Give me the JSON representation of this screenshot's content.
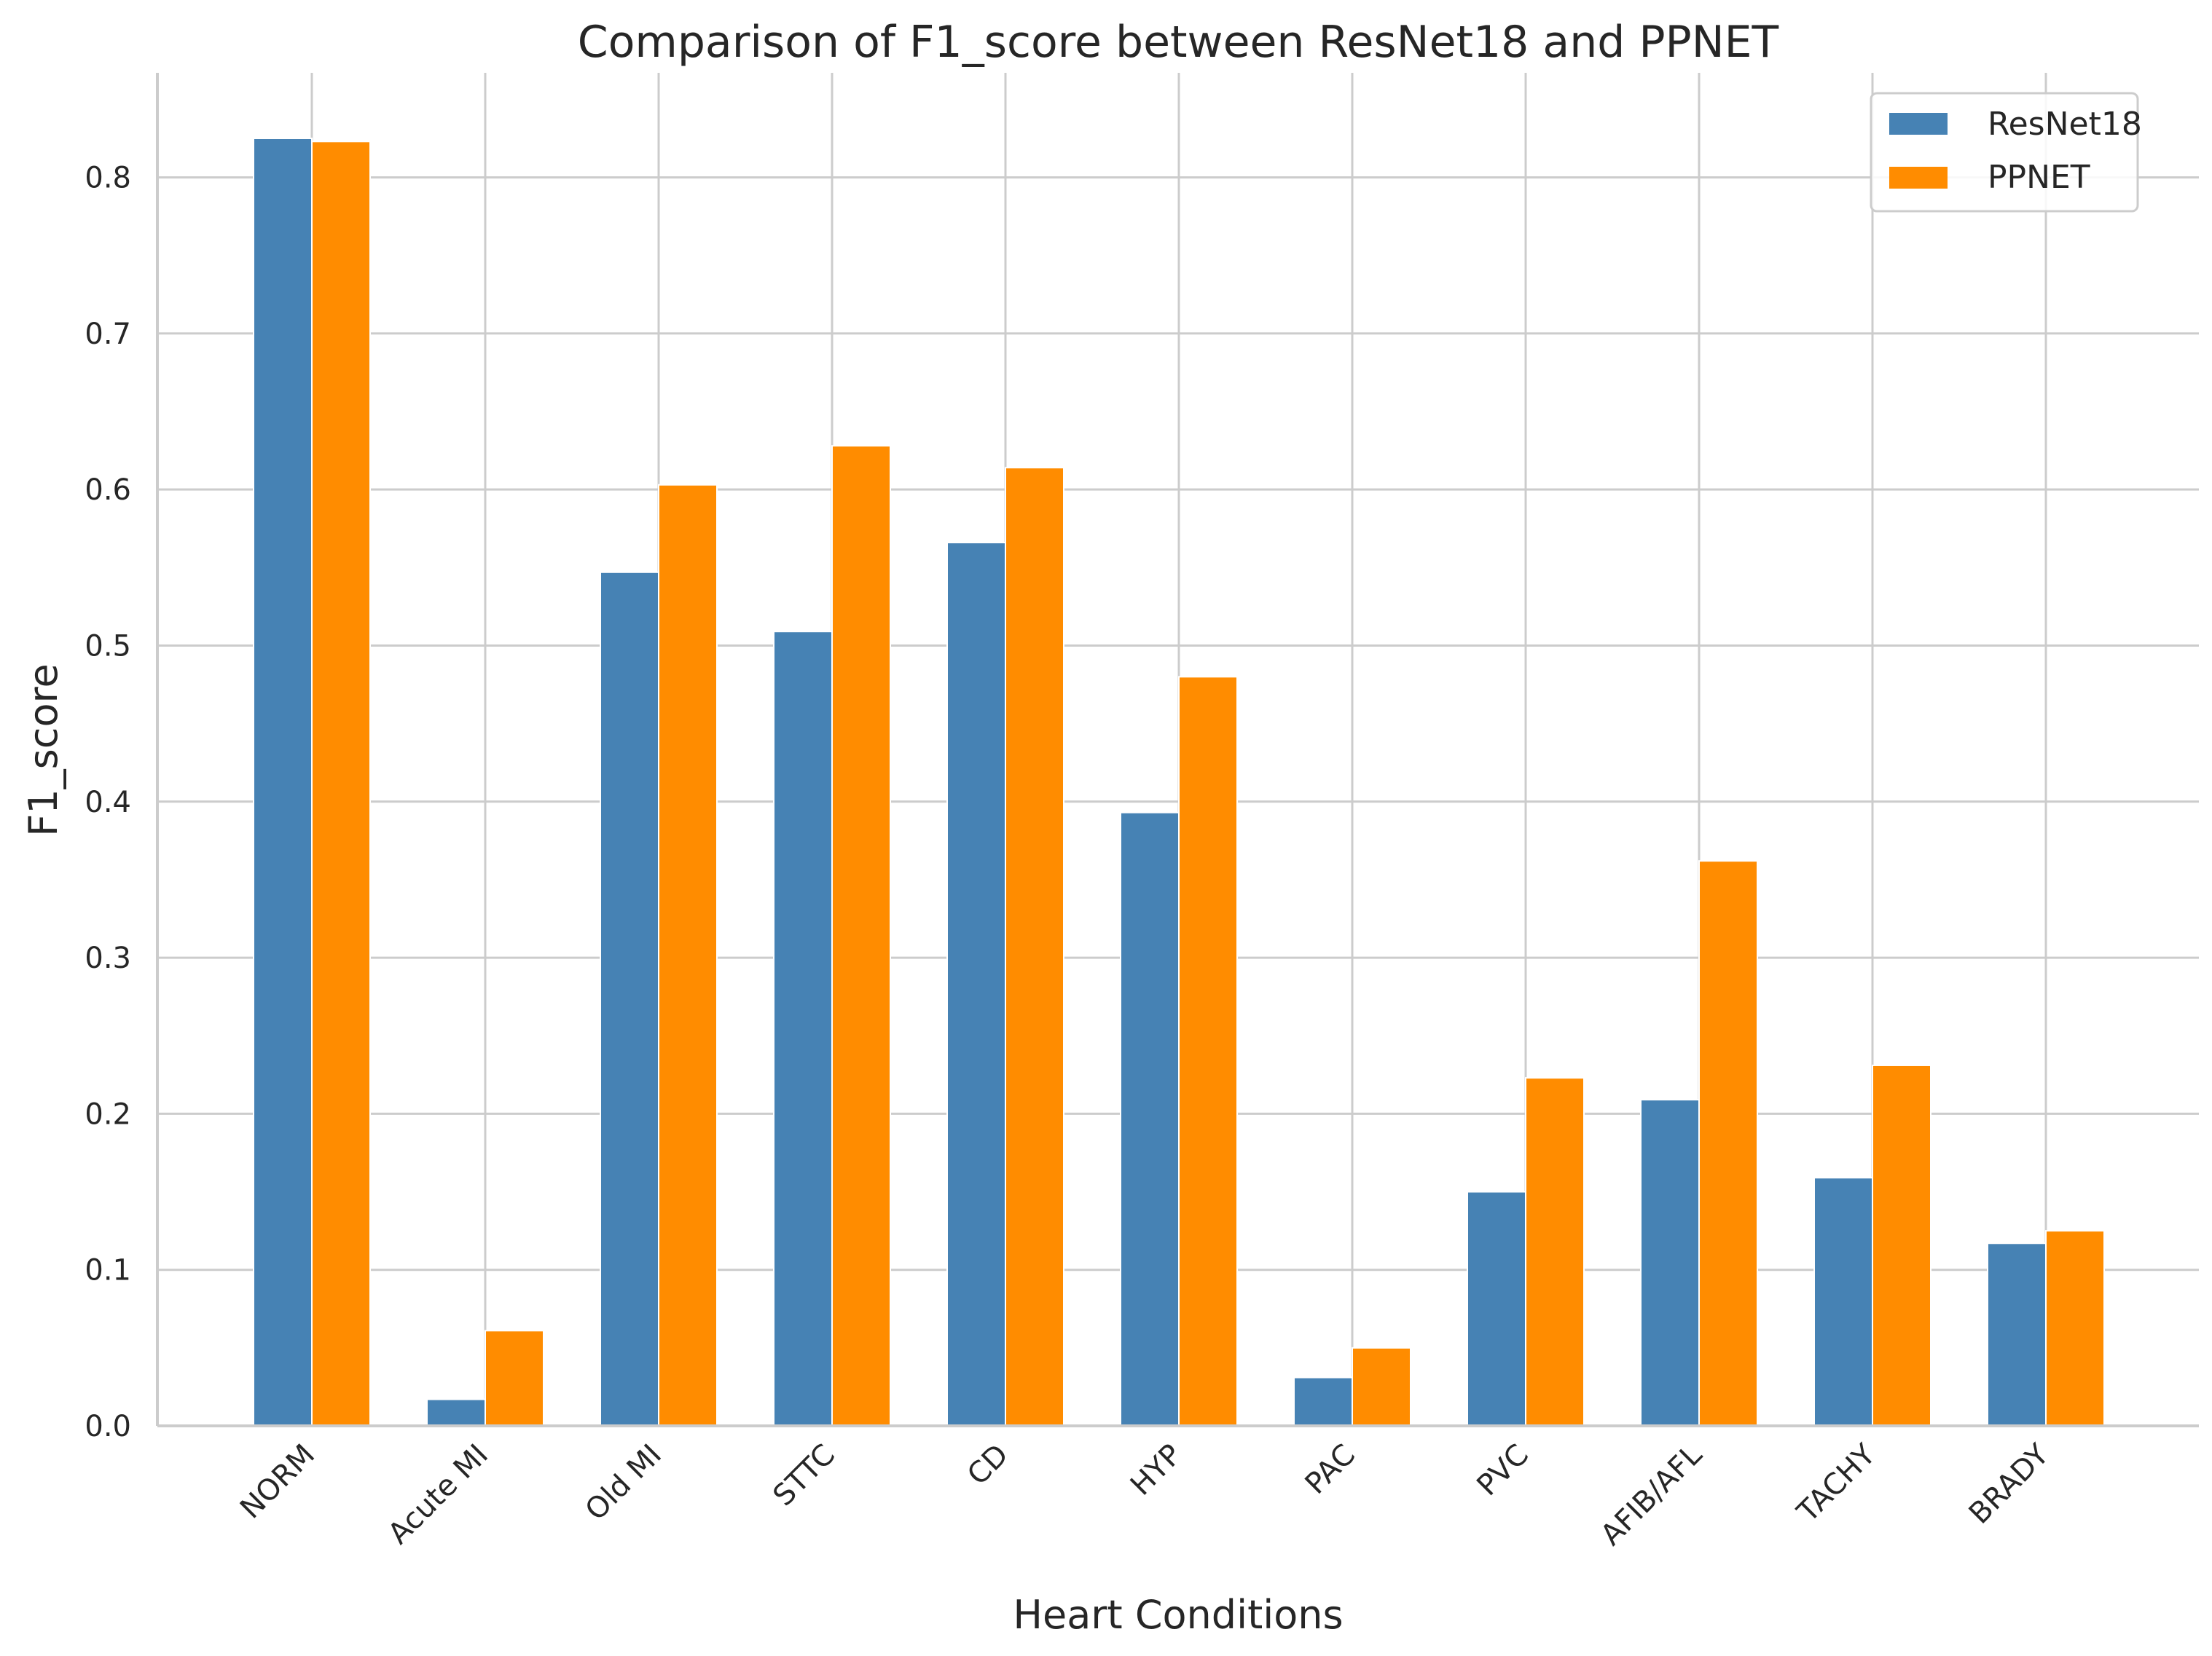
{
  "chart_data": {
    "type": "bar",
    "title": "Comparison of F1_score between ResNet18 and PPNET",
    "xlabel": "Heart Conditions",
    "ylabel": "F1_score",
    "categories": [
      "NORM",
      "Acute MI",
      "Old MI",
      "STTC",
      "CD",
      "HYP",
      "PAC",
      "PVC",
      "AFIB/AFL",
      "TACHY",
      "BRADY"
    ],
    "series": [
      {
        "name": "ResNet18",
        "color": "#4682b4",
        "values": [
          0.825,
          0.017,
          0.547,
          0.509,
          0.566,
          0.393,
          0.031,
          0.15,
          0.209,
          0.159,
          0.117
        ]
      },
      {
        "name": "PPNET",
        "color": "#ff8c00",
        "values": [
          0.823,
          0.061,
          0.603,
          0.628,
          0.614,
          0.48,
          0.05,
          0.223,
          0.362,
          0.231,
          0.125
        ]
      }
    ],
    "ylim": [
      0,
      0.867
    ],
    "yticks": [
      "0.0",
      "0.1",
      "0.2",
      "0.3",
      "0.4",
      "0.5",
      "0.6",
      "0.7",
      "0.8"
    ],
    "grid": true,
    "legend_position": "top-right"
  }
}
